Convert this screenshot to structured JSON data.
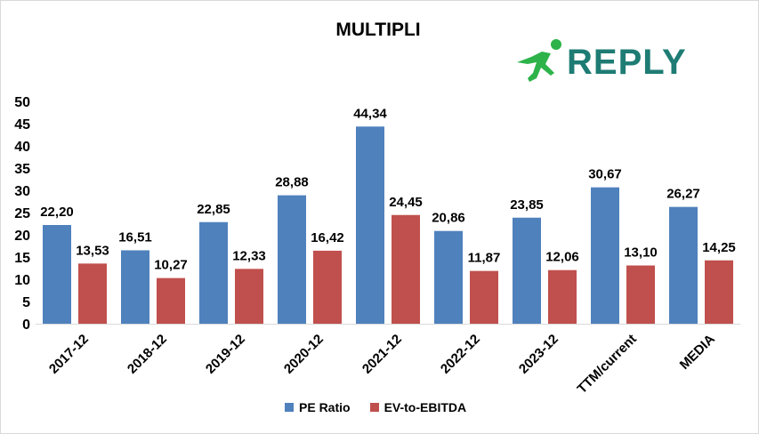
{
  "chart_data": {
    "type": "bar",
    "title": "MULTIPLI",
    "categories": [
      "2017-12",
      "2018-12",
      "2019-12",
      "2020-12",
      "2021-12",
      "2022-12",
      "2023-12",
      "TTM/current",
      "MEDIA"
    ],
    "series": [
      {
        "name": "PE Ratio",
        "color": "#4f81bd",
        "values": [
          22.2,
          16.51,
          22.85,
          28.88,
          44.34,
          20.86,
          23.85,
          30.67,
          26.27
        ],
        "labels": [
          "22,20",
          "16,51",
          "22,85",
          "28,88",
          "44,34",
          "20,86",
          "23,85",
          "30,67",
          "26,27"
        ]
      },
      {
        "name": "EV-to-EBITDA",
        "color": "#c0504d",
        "values": [
          13.53,
          10.27,
          12.33,
          16.42,
          24.45,
          11.87,
          12.06,
          13.1,
          14.25
        ],
        "labels": [
          "13,53",
          "10,27",
          "12,33",
          "16,42",
          "24,45",
          "11,87",
          "12,06",
          "13,10",
          "14,25"
        ]
      }
    ],
    "ylim": [
      0,
      50
    ],
    "yticks": [
      0,
      5,
      10,
      15,
      20,
      25,
      30,
      35,
      40,
      45,
      50
    ],
    "grid": false,
    "legend": "bottom"
  },
  "logo": {
    "text": "REPLY",
    "color": "#1e7c74",
    "accent": "#2db34a"
  }
}
